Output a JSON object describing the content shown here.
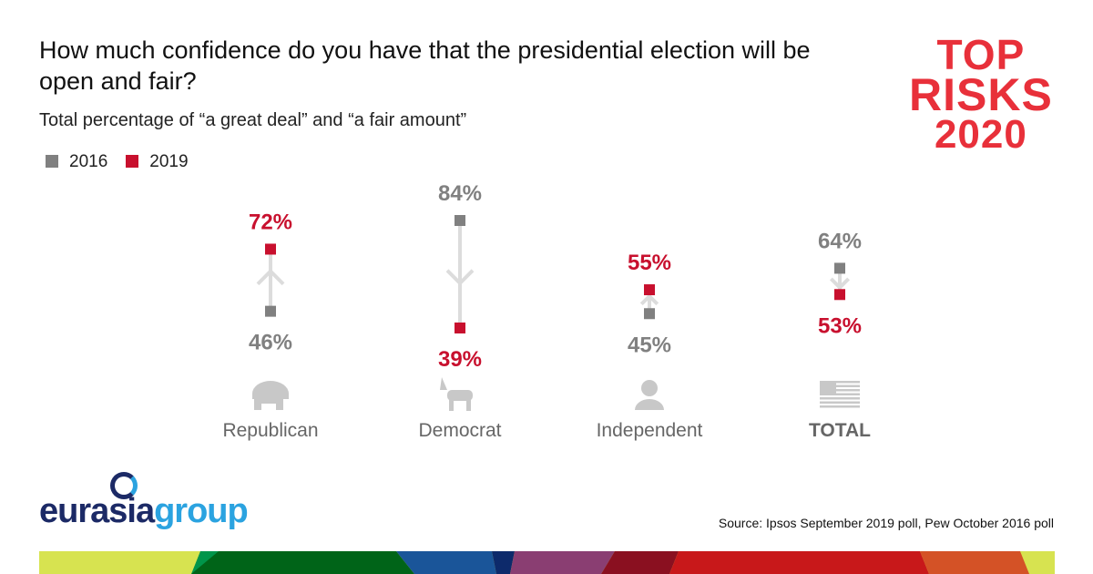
{
  "title": "How much confidence do you have that the presidential election will be open and fair?",
  "subtitle": "Total percentage of “a great deal” and “a fair amount”",
  "logo": {
    "line1": "TOP",
    "line2": "RISKS",
    "line3": "2020"
  },
  "brand": {
    "part1": "eurasia",
    "part2": "group"
  },
  "source": "Source: Ipsos September 2019 poll, Pew October 2016 poll",
  "colors": {
    "y2016": "#808080",
    "y2019": "#c8102e",
    "line": "#dcdcdc",
    "icon": "#c8c8c8"
  },
  "chart_data": {
    "type": "dot-arrow",
    "title": "How much confidence do you have that the presidential election will be open and fair?",
    "subtitle": "Total percentage of “a great deal” and “a fair amount”",
    "legend": [
      "2016",
      "2019"
    ],
    "legend_position": "top-left",
    "categories": [
      "Republican",
      "Democrat",
      "Independent",
      "TOTAL"
    ],
    "icons": [
      "elephant-icon",
      "donkey-icon",
      "person-icon",
      "us-flag-icon"
    ],
    "series": [
      {
        "name": "2016",
        "values": [
          46,
          84,
          45,
          64
        ]
      },
      {
        "name": "2019",
        "values": [
          72,
          39,
          55,
          53
        ]
      }
    ],
    "unit": "%"
  }
}
